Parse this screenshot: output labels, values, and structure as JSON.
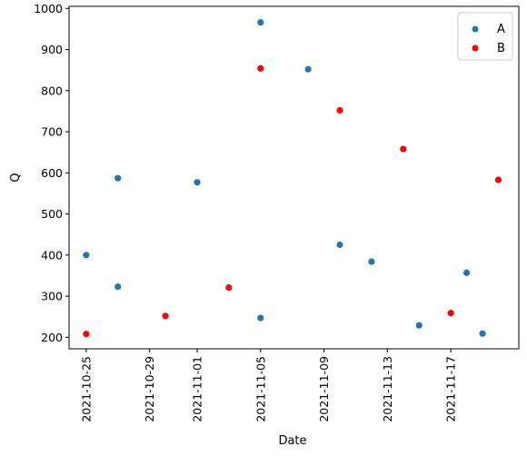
{
  "chart_data": {
    "type": "scatter",
    "xlabel": "Date",
    "ylabel": "Q",
    "x_axis_type": "date",
    "xlim": [
      "2021-10-24",
      "2021-11-21"
    ],
    "ylim": [
      172,
      1005
    ],
    "x_ticks": [
      "2021-10-25",
      "2021-10-29",
      "2021-11-01",
      "2021-11-05",
      "2021-11-09",
      "2021-11-13",
      "2021-11-17"
    ],
    "y_ticks": [
      200,
      300,
      400,
      500,
      600,
      700,
      800,
      900,
      1000
    ],
    "grid": false,
    "legend_position": "top-right",
    "series": [
      {
        "name": "A",
        "color": "#1f77b4",
        "points": [
          {
            "x": "2021-10-25",
            "y": 400
          },
          {
            "x": "2021-10-27",
            "y": 587
          },
          {
            "x": "2021-10-27",
            "y": 323
          },
          {
            "x": "2021-11-01",
            "y": 577
          },
          {
            "x": "2021-11-05",
            "y": 247
          },
          {
            "x": "2021-11-05",
            "y": 966
          },
          {
            "x": "2021-11-08",
            "y": 852
          },
          {
            "x": "2021-11-10",
            "y": 425
          },
          {
            "x": "2021-11-12",
            "y": 384
          },
          {
            "x": "2021-11-15",
            "y": 229
          },
          {
            "x": "2021-11-18",
            "y": 357
          },
          {
            "x": "2021-11-19",
            "y": 209
          }
        ]
      },
      {
        "name": "B",
        "color": "#ff0000",
        "points": [
          {
            "x": "2021-10-25",
            "y": 208
          },
          {
            "x": "2021-10-30",
            "y": 252
          },
          {
            "x": "2021-11-03",
            "y": 321
          },
          {
            "x": "2021-11-05",
            "y": 854
          },
          {
            "x": "2021-11-10",
            "y": 752
          },
          {
            "x": "2021-11-14",
            "y": 658
          },
          {
            "x": "2021-11-17",
            "y": 259
          },
          {
            "x": "2021-11-20",
            "y": 583
          }
        ]
      }
    ]
  }
}
